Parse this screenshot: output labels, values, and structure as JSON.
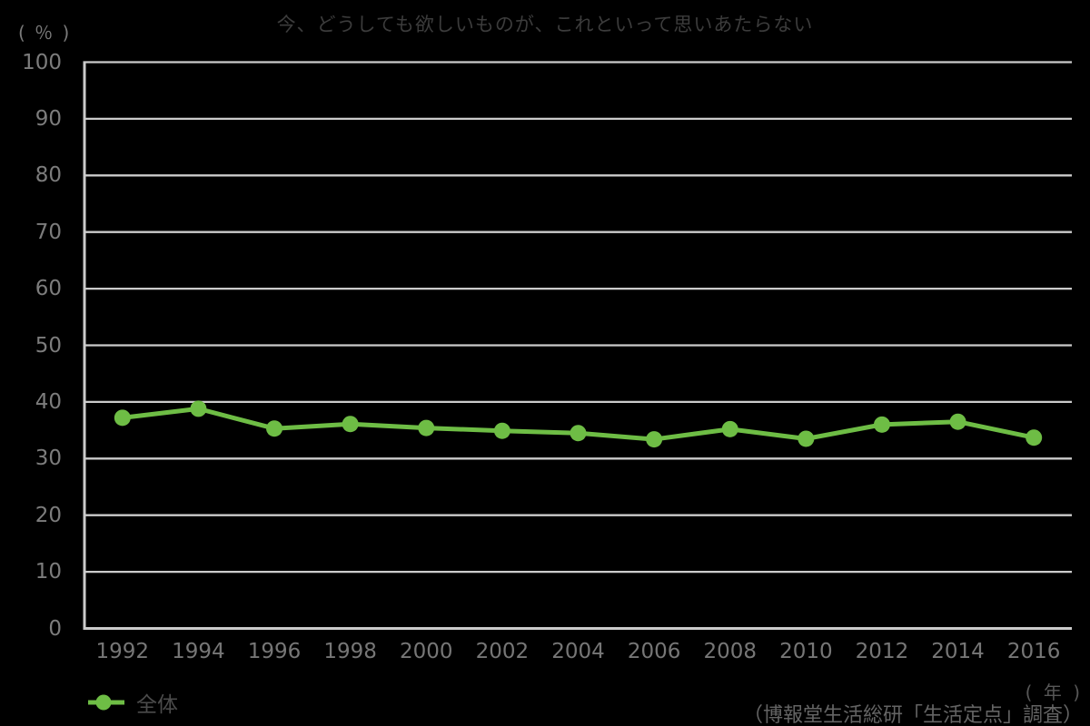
{
  "chart_data": {
    "type": "line",
    "title": "今、どうしても欲しいものが、これといって思いあたらない",
    "ylabel": "( ％ )",
    "xlabel": "( 年 )",
    "x": [
      1992,
      1994,
      1996,
      1998,
      2000,
      2002,
      2004,
      2006,
      2008,
      2010,
      2012,
      2014,
      2016
    ],
    "series": [
      {
        "name": "全体",
        "values": [
          37.2,
          38.8,
          35.3,
          36.1,
          35.4,
          34.9,
          34.5,
          33.4,
          35.2,
          33.5,
          36.0,
          36.5,
          33.7
        ]
      }
    ],
    "ylim": [
      0,
      100
    ],
    "ytick_step": 10,
    "grid": "horizontal",
    "legend_position": "bottom-left",
    "colors": {
      "line": "#6ebd45",
      "marker": "#6ebd45",
      "grid": "#cbcbcb",
      "axis": "#cbcbcb"
    }
  },
  "source": "（博報堂生活総研「生活定点」調査）"
}
